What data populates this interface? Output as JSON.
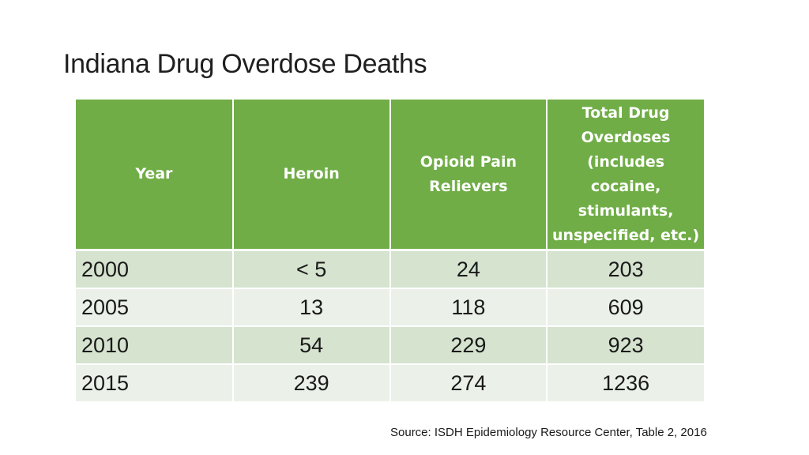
{
  "slide": {
    "title_main": "Indiana Drug Overdose ",
    "title_emph": "Deaths",
    "source": "Source: ISDH Epidemiology Resource Center, Table 2, 2016"
  },
  "table": {
    "headers": [
      "Year",
      "Heroin",
      "Opioid Pain Relievers",
      "Total Drug Overdoses (includes cocaine, stimulants, unspecified, etc.)"
    ],
    "rows": [
      [
        "2000",
        "< 5",
        "24",
        "203"
      ],
      [
        "2005",
        "13",
        "118",
        "609"
      ],
      [
        "2010",
        "54",
        "229",
        "923"
      ],
      [
        "2015",
        "239",
        "274",
        "1236"
      ]
    ]
  },
  "colors": {
    "header_bg": "#70ad47",
    "row_band_dark": "#d5e3cf",
    "row_band_light": "#ebf1e9"
  }
}
